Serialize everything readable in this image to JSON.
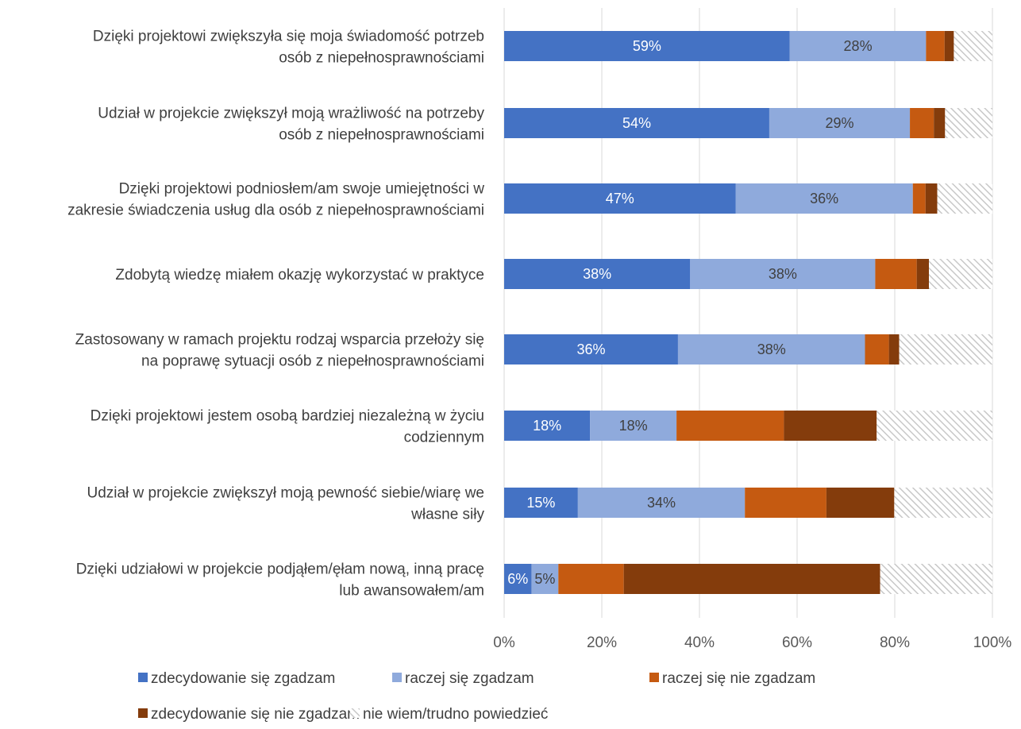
{
  "chart_data": {
    "type": "bar",
    "orientation": "horizontal",
    "stacked": true,
    "percent_stacked": true,
    "xlim": [
      0,
      100
    ],
    "x_ticks": [
      "0%",
      "20%",
      "40%",
      "60%",
      "80%",
      "100%"
    ],
    "grid": true,
    "legend_position": "bottom",
    "categories": [
      [
        "Dzięki projektowi zwiększyła się moja świadomość potrzeb",
        "osób z niepełnosprawnościami"
      ],
      [
        "Udział w projekcie zwiększył moją wrażliwość na potrzeby",
        "osób z niepełnosprawnościami"
      ],
      [
        "Dzięki projektowi podniosłem/am swoje umiejętności w",
        "zakresie świadczenia usług dla osób z niepełnosprawnościami"
      ],
      [
        "Zdobytą wiedzę miałem okazję wykorzystać w praktyce"
      ],
      [
        "Zastosowany w ramach projektu rodzaj wsparcia przełoży się",
        "na poprawę sytuacji osób z niepełnosprawnościami"
      ],
      [
        "Dzięki projektowi jestem osobą bardziej niezależną w życiu",
        "codziennym"
      ],
      [
        "Udział w projekcie zwiększył moją pewność siebie/wiarę we",
        "własne siły"
      ],
      [
        "Dzięki udziałowi w projekcie podjąłem/ęłam nową, inną pracę",
        "lub awansowałem/am"
      ]
    ],
    "series": [
      {
        "name": "zdecydowanie się zgadzam",
        "color": "#4472c4",
        "label_color": "#ffffff",
        "show_labels": true,
        "values": [
          58.5,
          54.3,
          47.4,
          38.1,
          35.6,
          17.6,
          15.1,
          5.6
        ],
        "labels": [
          "59%",
          "54%",
          "47%",
          "38%",
          "36%",
          "18%",
          "15%",
          "6%"
        ]
      },
      {
        "name": "raczej się zgadzam",
        "color": "#8faadc",
        "label_color": "#404040",
        "show_labels": true,
        "values": [
          27.9,
          28.8,
          36.3,
          37.9,
          38.3,
          17.7,
          34.2,
          5.5
        ],
        "labels": [
          "28%",
          "29%",
          "36%",
          "38%",
          "38%",
          "18%",
          "34%",
          "5%"
        ]
      },
      {
        "name": "raczej się nie zgadzam",
        "color": "#c55a11",
        "show_labels": false,
        "values": [
          3.8,
          4.9,
          2.6,
          8.5,
          4.9,
          22.0,
          16.7,
          13.4
        ]
      },
      {
        "name": "zdecydowanie się nie zgadzam",
        "color": "#843c0c",
        "show_labels": false,
        "values": [
          1.9,
          2.3,
          2.4,
          2.5,
          2.1,
          19.0,
          13.9,
          52.5
        ]
      },
      {
        "name": "nie wiem/trudno powiedzieć",
        "color": "hatch",
        "show_labels": false,
        "values": [
          7.9,
          9.7,
          11.3,
          13.0,
          19.1,
          23.7,
          20.1,
          23.0
        ]
      }
    ]
  }
}
